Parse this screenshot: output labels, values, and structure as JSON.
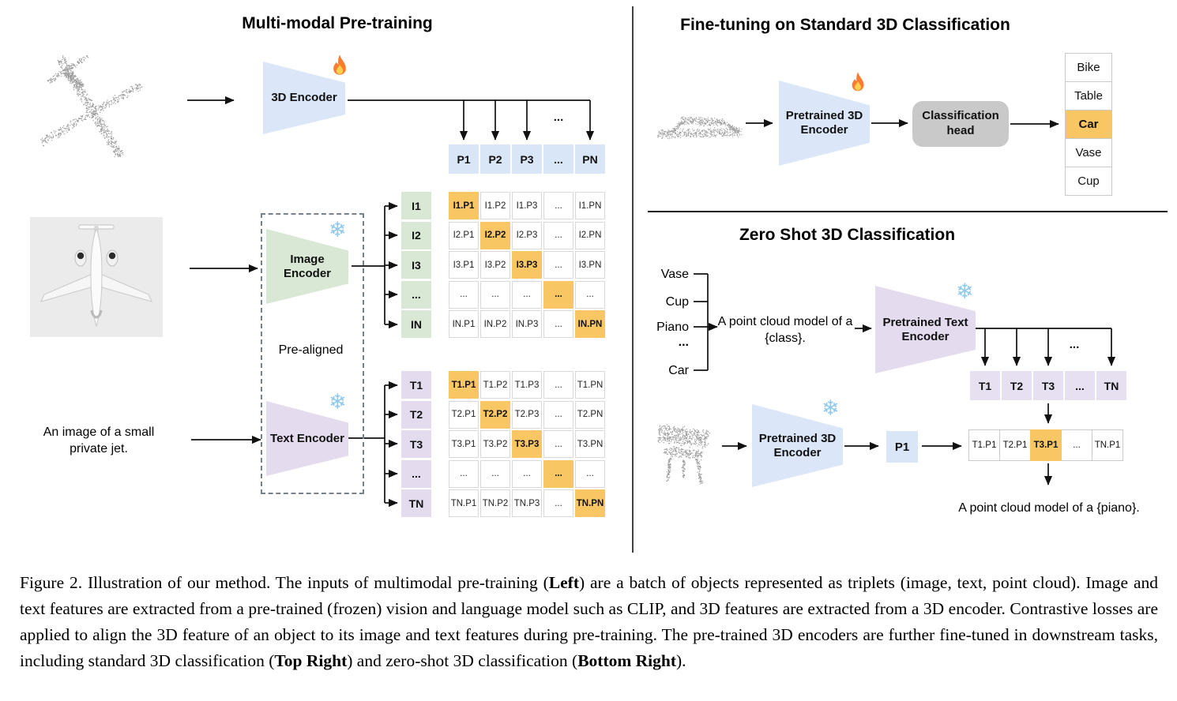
{
  "left": {
    "title": "Multi-modal Pre-training",
    "encoder_3d_label": "3D Encoder",
    "image_encoder_label": "Image Encoder",
    "text_encoder_label": "Text Encoder",
    "pre_aligned_label": "Pre-aligned",
    "jet_text": "An image of a small private jet.",
    "dots": "...",
    "p_row": [
      "P1",
      "P2",
      "P3",
      "...",
      "PN"
    ],
    "i_col": [
      "I1",
      "I2",
      "I3",
      "...",
      "IN"
    ],
    "i_matrix": [
      [
        "I1.P1",
        "I1.P2",
        "I1.P3",
        "...",
        "I1.PN"
      ],
      [
        "I2.P1",
        "I2.P2",
        "I2.P3",
        "...",
        "I2.PN"
      ],
      [
        "I3.P1",
        "I3.P2",
        "I3.P3",
        "...",
        "I3.PN"
      ],
      [
        "...",
        "...",
        "...",
        "...",
        "..."
      ],
      [
        "IN.P1",
        "IN.P2",
        "IN.P3",
        "...",
        "IN.PN"
      ]
    ],
    "t_col": [
      "T1",
      "T2",
      "T3",
      "...",
      "TN"
    ],
    "t_matrix": [
      [
        "T1.P1",
        "T1.P2",
        "T1.P3",
        "...",
        "T1.PN"
      ],
      [
        "T2.P1",
        "T2.P2",
        "T2.P3",
        "...",
        "T2.PN"
      ],
      [
        "T3.P1",
        "T3.P2",
        "T3.P3",
        "...",
        "T3.PN"
      ],
      [
        "...",
        "...",
        "...",
        "...",
        "..."
      ],
      [
        "TN.P1",
        "TN.P2",
        "TN.P3",
        "...",
        "TN.PN"
      ]
    ]
  },
  "top_right": {
    "title": "Fine-tuning on Standard 3D Classification",
    "encoder_label": "Pretrained 3D Encoder",
    "head_label": "Classification head",
    "classes": [
      "Bike",
      "Table",
      "Car",
      "Vase",
      "Cup"
    ],
    "highlight_index": 2
  },
  "bottom_right": {
    "title": "Zero Shot 3D Classification",
    "class_list": [
      "Vase",
      "Cup",
      "Piano",
      "...",
      "Car"
    ],
    "prompt": "A point cloud model of a {class}.",
    "text_encoder_label": "Pretrained Text Encoder",
    "encoder_3d_label": "Pretrained 3D Encoder",
    "dots": "...",
    "t_row": [
      "T1",
      "T2",
      "T3",
      "...",
      "TN"
    ],
    "p1_label": "P1",
    "sim_row": [
      "T1.P1",
      "T2.P1",
      "T3.P1",
      "...",
      "TN.P1"
    ],
    "sim_highlight_index": 2,
    "result_text": "A point cloud model of a {piano}."
  },
  "caption": {
    "segments": [
      {
        "t": "Figure 2. Illustration of our method. The inputs of multimodal pre-training (",
        "b": 0
      },
      {
        "t": "Left",
        "b": 1
      },
      {
        "t": ") are a batch of objects represented as triplets (image, text, point cloud). Image and text features are extracted from a pre-trained (frozen) vision and language model such as CLIP, and 3D features are extracted from a 3D encoder. Contrastive losses are applied to align the 3D feature of an object to its image and text features during pre-training. The pre-trained 3D encoders are further fine-tuned in downstream tasks, including standard 3D classification (",
        "b": 0
      },
      {
        "t": "Top Right",
        "b": 1
      },
      {
        "t": ") and zero-shot 3D classification (",
        "b": 0
      },
      {
        "t": "Bottom Right",
        "b": 1
      },
      {
        "t": ").",
        "b": 0
      }
    ]
  },
  "colors": {
    "encoder_blue": "#dbe7f8",
    "encoder_green": "#d8e8d5",
    "encoder_purple": "#e5dbee",
    "highlight_orange": "#f9c664",
    "head_gray": "#c9c9c9"
  }
}
